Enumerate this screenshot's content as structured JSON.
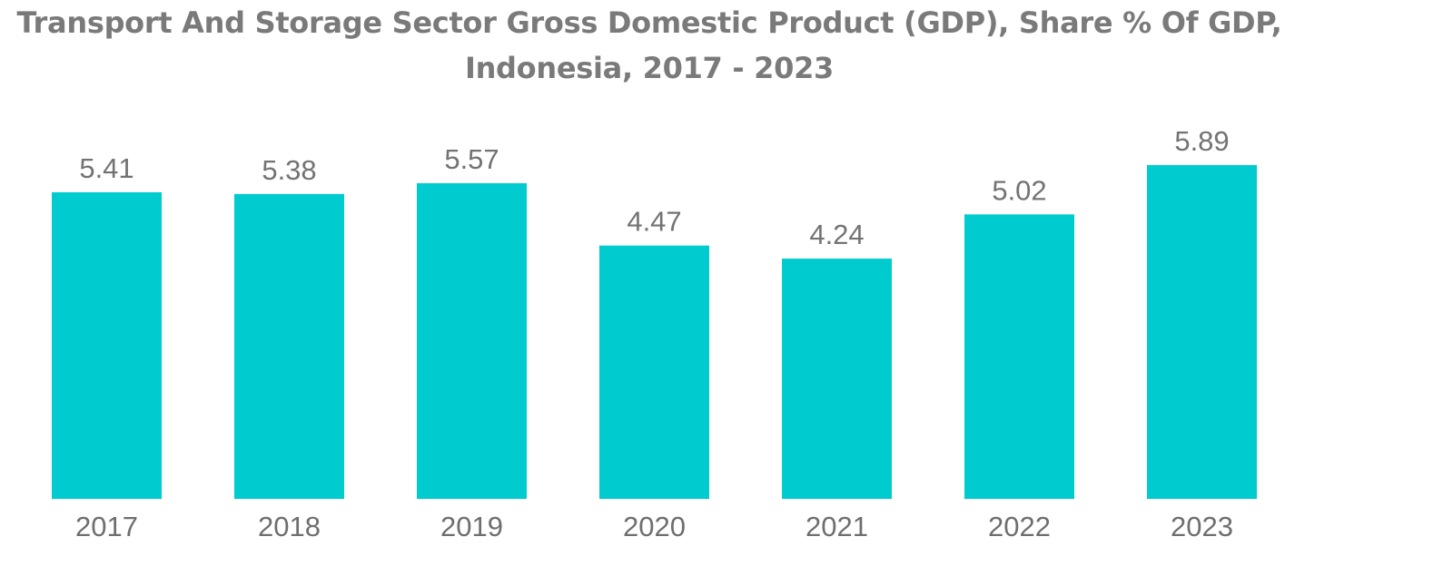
{
  "chart_data": {
    "type": "bar",
    "title_line1": "Transport And Storage Sector Gross Domestic Product (GDP), Share % Of GDP,",
    "title_line2": "Indonesia, 2017 - 2023",
    "categories": [
      "2017",
      "2018",
      "2019",
      "2020",
      "2021",
      "2022",
      "2023"
    ],
    "values": [
      5.41,
      5.38,
      5.57,
      4.47,
      4.24,
      5.02,
      5.89
    ],
    "value_labels": [
      "5.41",
      "5.38",
      "5.57",
      "4.47",
      "4.24",
      "5.02",
      "5.89"
    ],
    "xlabel": "",
    "ylabel": "",
    "ylim": [
      0,
      5.89
    ],
    "grid": false,
    "legend": "none",
    "bar_color": "#00cccf"
  }
}
